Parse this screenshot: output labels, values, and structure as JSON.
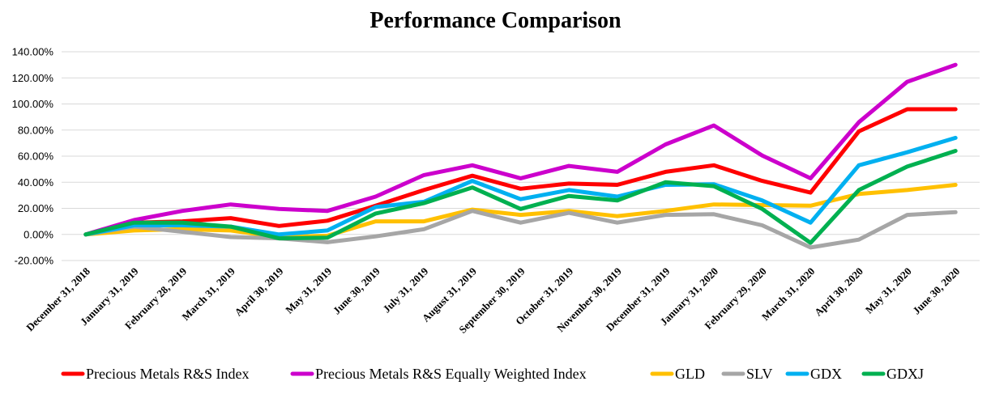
{
  "chart_data": {
    "type": "line",
    "title": "Performance Comparison",
    "xlabel": "",
    "ylabel": "",
    "ylim": [
      -0.2,
      1.4
    ],
    "y_ticks": [
      "140.00%",
      "120.00%",
      "100.00%",
      "80.00%",
      "60.00%",
      "40.00%",
      "20.00%",
      "0.00%",
      "-20.00%"
    ],
    "grid": "horizontal",
    "legend_position": "bottom",
    "categories": [
      "December 31, 2018",
      "January 31, 2019",
      "February 28, 2019",
      "March 31, 2019",
      "April 30, 2019",
      "May 31, 2019",
      "June 30, 2019",
      "July 31, 2019",
      "August 31, 2019",
      "September 30, 2019",
      "October 31, 2019",
      "November 30, 2019",
      "December 31, 2019",
      "January 31, 2020",
      "February 29, 2020",
      "March 31, 2020",
      "April 30, 2020",
      "May 31, 2020",
      "June 30, 2020"
    ],
    "series": [
      {
        "name": "Precious Metals R&S Index",
        "color": "#ff0000",
        "values": [
          0.0,
          0.09,
          0.1,
          0.125,
          0.065,
          0.105,
          0.22,
          0.34,
          0.45,
          0.35,
          0.39,
          0.38,
          0.48,
          0.53,
          0.41,
          0.32,
          0.79,
          0.96,
          0.96
        ]
      },
      {
        "name": "Precious Metals R&S Equally Weighted Index",
        "color": "#cc00cc",
        "values": [
          0.0,
          0.11,
          0.18,
          0.23,
          0.195,
          0.18,
          0.29,
          0.455,
          0.53,
          0.43,
          0.525,
          0.48,
          0.69,
          0.835,
          0.605,
          0.43,
          0.86,
          1.17,
          1.3
        ]
      },
      {
        "name": "GLD",
        "color": "#ffc000",
        "values": [
          0.0,
          0.03,
          0.04,
          0.03,
          -0.02,
          -0.01,
          0.1,
          0.1,
          0.19,
          0.15,
          0.18,
          0.14,
          0.18,
          0.23,
          0.225,
          0.22,
          0.31,
          0.34,
          0.38
        ]
      },
      {
        "name": "SLV",
        "color": "#a6a6a6",
        "values": [
          0.0,
          0.06,
          0.02,
          -0.02,
          -0.03,
          -0.06,
          -0.015,
          0.04,
          0.18,
          0.09,
          0.165,
          0.09,
          0.15,
          0.155,
          0.07,
          -0.1,
          -0.04,
          0.15,
          0.17
        ]
      },
      {
        "name": "GDX",
        "color": "#00b0f0",
        "values": [
          0.0,
          0.07,
          0.07,
          0.06,
          0.0,
          0.03,
          0.21,
          0.25,
          0.41,
          0.27,
          0.34,
          0.29,
          0.38,
          0.385,
          0.26,
          0.09,
          0.53,
          0.63,
          0.74
        ]
      },
      {
        "name": "GDXJ",
        "color": "#00b050",
        "values": [
          0.0,
          0.09,
          0.09,
          0.06,
          -0.03,
          -0.025,
          0.16,
          0.24,
          0.36,
          0.195,
          0.295,
          0.26,
          0.4,
          0.37,
          0.195,
          -0.065,
          0.34,
          0.52,
          0.64
        ]
      }
    ]
  }
}
